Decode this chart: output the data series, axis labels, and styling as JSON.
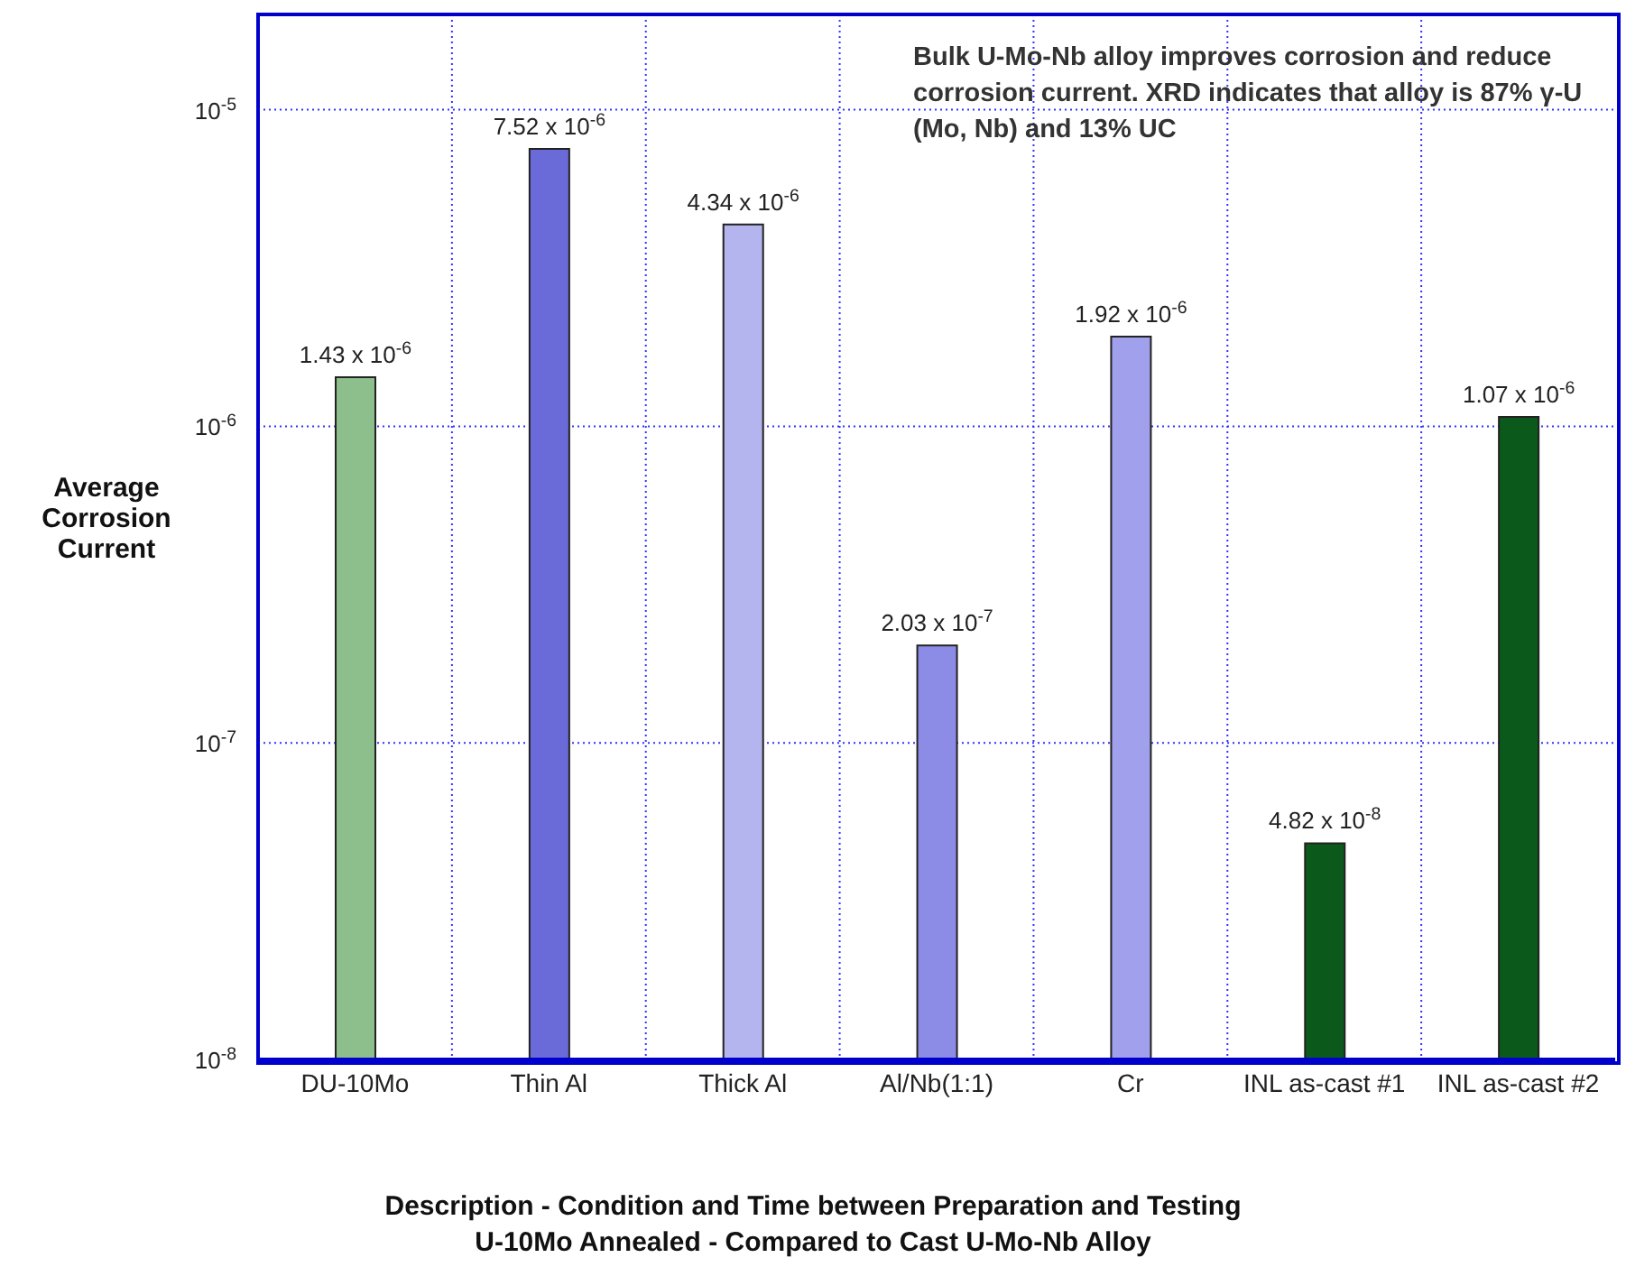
{
  "chart_data": {
    "type": "bar",
    "xlabel": "Description - Condition and Time between Preparation and Testing\nU-10Mo Annealed - Compared to Cast U-Mo-Nb Alloy",
    "ylabel": "Average\nCorrosion\nCurrent",
    "categories": [
      "DU-10Mo",
      "Thin Al",
      "Thick Al",
      "Al/Nb(1:1)",
      "Cr",
      "INL as-cast #1",
      "INL as-cast #2"
    ],
    "values": [
      1.43e-06,
      7.52e-06,
      4.34e-06,
      2.03e-07,
      1.92e-06,
      4.82e-08,
      1.07e-06
    ],
    "colors": [
      "#8cbf8c",
      "#6a6ad8",
      "#b4b4ee",
      "#8c8ce6",
      "#a0a0ec",
      "#0b5a1b",
      "#0b5a1b"
    ],
    "value_labels": [
      "1.43 x 10$^{-6}$",
      "7.52 x 10$^{-6}$",
      "4.34 x 10$^{-6}$",
      "2.03 x 10$^{-7}$",
      "1.92 x 10$^{-6}$",
      "4.82 x 10$^{-8}$",
      "1.07 x 10$^{-6}$"
    ],
    "log": "y",
    "ylim": [
      1e-08,
      2e-05
    ],
    "yticks": [
      {
        "value": 1e-08,
        "label": "10$^{-8}$"
      },
      {
        "value": 1e-07,
        "label": "10$^{-7}$"
      },
      {
        "value": 1e-06,
        "label": "10$^{-6}$"
      },
      {
        "value": 1e-05,
        "label": "10$^{-5}$"
      }
    ],
    "grid": true,
    "annotations": [
      "Bulk U-Mo-Nb alloy  improves corrosion and reduce corrosion current. XRD indicates that alloy is 87% γ-U (Mo, Nb) and 13% UC"
    ]
  }
}
